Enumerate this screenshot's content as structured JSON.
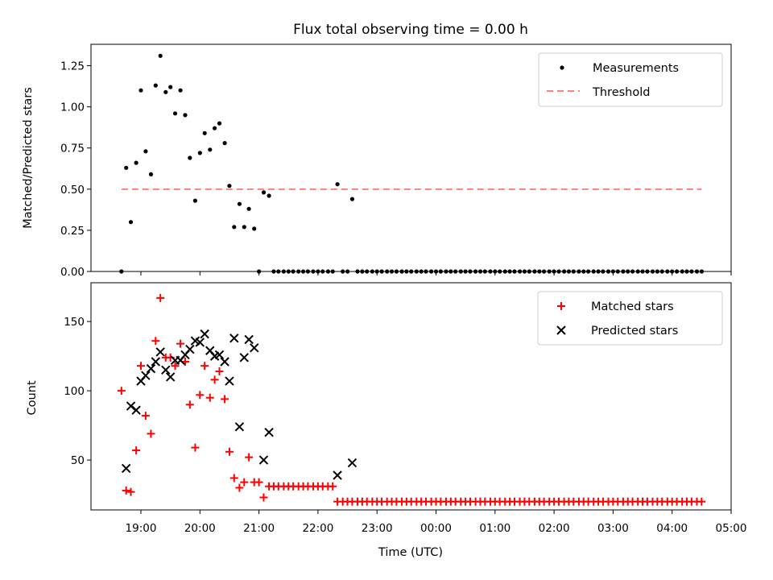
{
  "chart_data": [
    {
      "type": "scatter",
      "title": "Flux total observing time = 0.00 h",
      "xlabel": "",
      "ylabel": "Matched/Predicted stars",
      "ylim": [
        0,
        1.38
      ],
      "yticks": [
        0.0,
        0.25,
        0.5,
        0.75,
        1.0,
        1.25
      ],
      "ytick_labels": [
        "0.00",
        "0.25",
        "0.50",
        "0.75",
        "1.00",
        "1.25"
      ],
      "xlim_hours": [
        18.2,
        29.0
      ],
      "legend_position": "upper right",
      "series": [
        {
          "name": "Measurements",
          "color": "#000000",
          "marker": "dot",
          "x": [
            18.67,
            18.75,
            18.83,
            18.92,
            19.0,
            19.08,
            19.17,
            19.25,
            19.33,
            19.42,
            19.5,
            19.58,
            19.67,
            19.75,
            19.83,
            19.92,
            20.0,
            20.08,
            20.17,
            20.25,
            20.33,
            20.42,
            20.5,
            20.58,
            20.67,
            20.75,
            20.83,
            20.92,
            21.0,
            21.08,
            21.17,
            21.25,
            21.33,
            21.42,
            21.5,
            21.58,
            21.67,
            21.75,
            21.83,
            21.92,
            22.0,
            22.08,
            22.17,
            22.25,
            22.33,
            22.42,
            22.5,
            22.58,
            22.67,
            22.75,
            22.83,
            22.92,
            23.0,
            23.08,
            23.17,
            23.25,
            23.33,
            23.42,
            23.5,
            23.58,
            23.67,
            23.75,
            23.83,
            23.92,
            24.0,
            24.08,
            24.17,
            24.25,
            24.33,
            24.42,
            24.5,
            24.58,
            24.67,
            24.75,
            24.83,
            24.92,
            25.0,
            25.08,
            25.17,
            25.25,
            25.33,
            25.42,
            25.5,
            25.58,
            25.67,
            25.75,
            25.83,
            25.92,
            26.0,
            26.08,
            26.17,
            26.25,
            26.33,
            26.42,
            26.5,
            26.58,
            26.67,
            26.75,
            26.83,
            26.92,
            27.0,
            27.08,
            27.17,
            27.25,
            27.33,
            27.42,
            27.5,
            27.58,
            27.67,
            27.75,
            27.83,
            27.92,
            28.0,
            28.08,
            28.17,
            28.25,
            28.33,
            28.42,
            28.5
          ],
          "y": [
            0.0,
            0.63,
            0.3,
            0.66,
            1.1,
            0.73,
            0.59,
            1.13,
            1.31,
            1.09,
            1.12,
            0.96,
            1.1,
            0.95,
            0.69,
            0.43,
            0.72,
            0.84,
            0.74,
            0.87,
            0.9,
            0.78,
            0.52,
            0.27,
            0.41,
            0.27,
            0.38,
            0.26,
            0.0,
            0.48,
            0.46,
            0.0,
            0.0,
            0.0,
            0.0,
            0.0,
            0.0,
            0.0,
            0.0,
            0.0,
            0.0,
            0.0,
            0.0,
            0.0,
            0.53,
            0.0,
            0.0,
            0.44,
            0.0,
            0.0,
            0.0,
            0.0,
            0.0,
            0.0,
            0.0,
            0.0,
            0.0,
            0.0,
            0.0,
            0.0,
            0.0,
            0.0,
            0.0,
            0.0,
            0.0,
            0.0,
            0.0,
            0.0,
            0.0,
            0.0,
            0.0,
            0.0,
            0.0,
            0.0,
            0.0,
            0.0,
            0.0,
            0.0,
            0.0,
            0.0,
            0.0,
            0.0,
            0.0,
            0.0,
            0.0,
            0.0,
            0.0,
            0.0,
            0.0,
            0.0,
            0.0,
            0.0,
            0.0,
            0.0,
            0.0,
            0.0,
            0.0,
            0.0,
            0.0,
            0.0,
            0.0,
            0.0,
            0.0,
            0.0,
            0.0,
            0.0,
            0.0,
            0.0,
            0.0,
            0.0,
            0.0,
            0.0,
            0.0,
            0.0,
            0.0,
            0.0,
            0.0,
            0.0,
            0.0
          ]
        },
        {
          "name": "Threshold",
          "color": "#ff7f7f",
          "marker": "dashed-line",
          "x": [
            18.67,
            28.5
          ],
          "y": [
            0.5,
            0.5
          ]
        }
      ]
    },
    {
      "type": "scatter",
      "title": "",
      "xlabel": "Time (UTC)",
      "ylabel": "Count",
      "ylim": [
        14,
        178
      ],
      "yticks": [
        50,
        100,
        150
      ],
      "ytick_labels": [
        "50",
        "100",
        "150"
      ],
      "xlim_hours": [
        18.2,
        29.0
      ],
      "xticks": [
        "19:00",
        "20:00",
        "21:00",
        "22:00",
        "23:00",
        "00:00",
        "01:00",
        "02:00",
        "03:00",
        "04:00",
        "05:00"
      ],
      "legend_position": "upper right",
      "series": [
        {
          "name": "Matched stars",
          "color": "#ff0000",
          "marker": "plus",
          "x": [
            18.67,
            18.75,
            18.83,
            18.92,
            19.0,
            19.08,
            19.17,
            19.25,
            19.33,
            19.42,
            19.5,
            19.58,
            19.67,
            19.75,
            19.83,
            19.92,
            20.0,
            20.08,
            20.17,
            20.25,
            20.33,
            20.42,
            20.5,
            20.58,
            20.67,
            20.75,
            20.83,
            20.92,
            21.0,
            21.08,
            21.17,
            21.25,
            21.33,
            21.42,
            21.5,
            21.58,
            21.67,
            21.75,
            21.83,
            21.92,
            22.0,
            22.08,
            22.17,
            22.25,
            22.33,
            22.42,
            22.5,
            22.58,
            22.67,
            22.75,
            22.83,
            22.92,
            23.0,
            23.08,
            23.17,
            23.25,
            23.33,
            23.42,
            23.5,
            23.58,
            23.67,
            23.75,
            23.83,
            23.92,
            24.0,
            24.08,
            24.17,
            24.25,
            24.33,
            24.42,
            24.5,
            24.58,
            24.67,
            24.75,
            24.83,
            24.92,
            25.0,
            25.08,
            25.17,
            25.25,
            25.33,
            25.42,
            25.5,
            25.58,
            25.67,
            25.75,
            25.83,
            25.92,
            26.0,
            26.08,
            26.17,
            26.25,
            26.33,
            26.42,
            26.5,
            26.58,
            26.67,
            26.75,
            26.83,
            26.92,
            27.0,
            27.08,
            27.17,
            27.25,
            27.33,
            27.42,
            27.5,
            27.58,
            27.67,
            27.75,
            27.83,
            27.92,
            28.0,
            28.08,
            28.17,
            28.25,
            28.33,
            28.42,
            28.5
          ],
          "y": [
            100,
            28,
            27,
            57,
            118,
            82,
            69,
            136,
            167,
            124,
            124,
            118,
            134,
            121,
            90,
            59,
            97,
            118,
            95,
            108,
            114,
            94,
            56,
            37,
            30,
            34,
            52,
            34,
            34,
            23,
            31,
            31,
            31,
            31,
            31,
            31,
            31,
            31,
            31,
            31,
            31,
            31,
            31,
            31,
            20,
            20,
            20,
            20,
            20,
            20,
            20,
            20,
            20,
            20,
            20,
            20,
            20,
            20,
            20,
            20,
            20,
            20,
            20,
            20,
            20,
            20,
            20,
            20,
            20,
            20,
            20,
            20,
            20,
            20,
            20,
            20,
            20,
            20,
            20,
            20,
            20,
            20,
            20,
            20,
            20,
            20,
            20,
            20,
            20,
            20,
            20,
            20,
            20,
            20,
            20,
            20,
            20,
            20,
            20,
            20,
            20,
            20,
            20,
            20,
            20,
            20,
            20,
            20,
            20,
            20,
            20,
            20,
            20,
            20,
            20,
            20,
            20,
            20,
            20
          ]
        },
        {
          "name": "Predicted stars",
          "color": "#000000",
          "marker": "x",
          "x": [
            18.75,
            18.83,
            18.92,
            19.0,
            19.08,
            19.17,
            19.25,
            19.33,
            19.42,
            19.5,
            19.58,
            19.67,
            19.75,
            19.83,
            19.92,
            20.0,
            20.08,
            20.17,
            20.25,
            20.33,
            20.42,
            20.5,
            20.58,
            20.67,
            20.75,
            20.83,
            20.92,
            21.08,
            21.17,
            22.33,
            22.58
          ],
          "y": [
            44,
            89,
            86,
            107,
            111,
            116,
            121,
            128,
            115,
            110,
            122,
            122,
            126,
            130,
            136,
            135,
            141,
            129,
            125,
            126,
            121,
            107,
            138,
            74,
            124,
            137,
            131,
            50,
            70,
            39,
            48
          ]
        }
      ]
    }
  ]
}
